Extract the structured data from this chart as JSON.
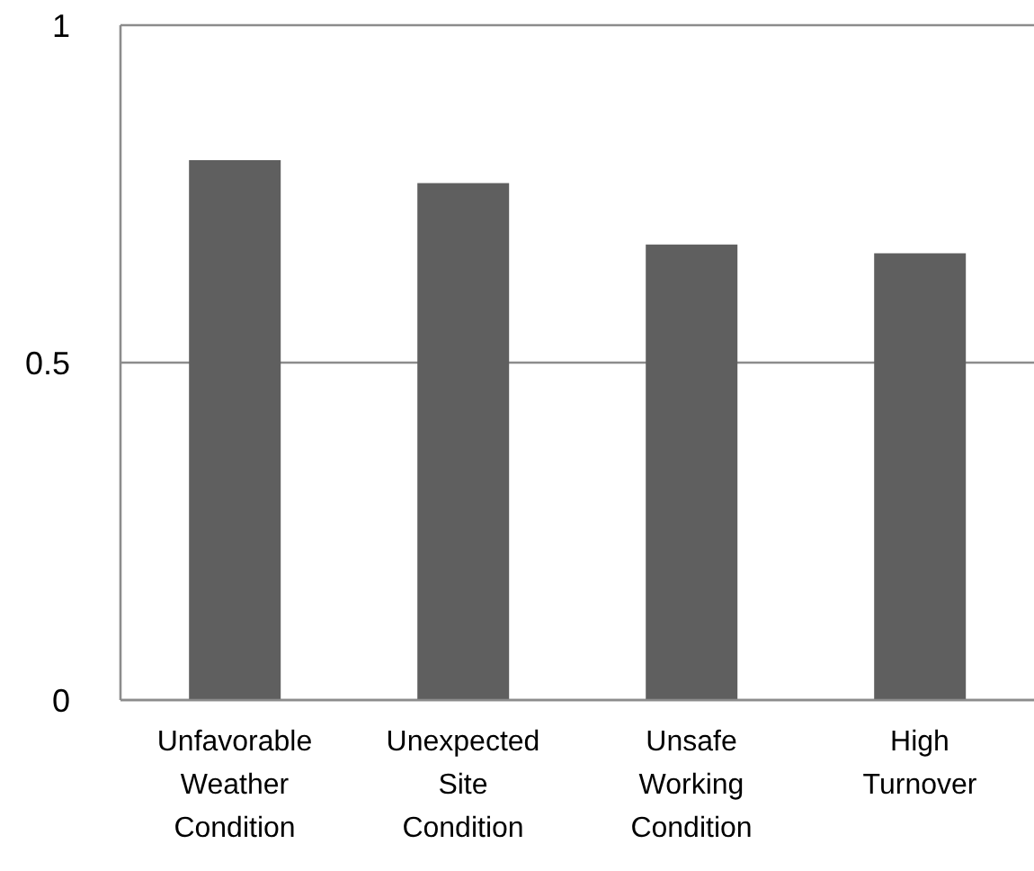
{
  "chart_data": {
    "type": "bar",
    "categories": [
      "Unfavorable Weather Condition",
      "Unexpected Site Condition",
      "Unsafe Working Condition",
      "High Turnover"
    ],
    "values": [
      0.8,
      0.766,
      0.675,
      0.662
    ],
    "color": "#5f5f5f",
    "ylim": [
      0,
      1
    ],
    "yticks": [
      0,
      0.5,
      1
    ],
    "grid": "y"
  }
}
